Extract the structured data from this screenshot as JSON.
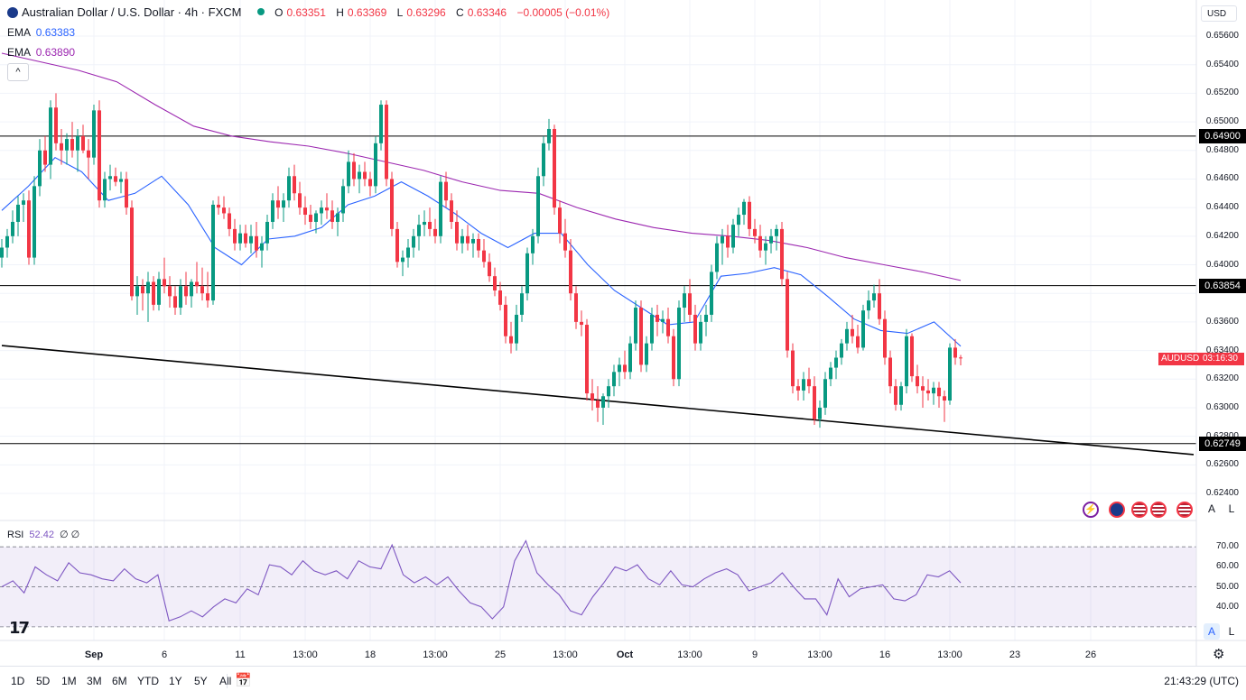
{
  "header": {
    "symbol_title": "Australian Dollar / U.S. Dollar · 4h · FXCM",
    "ohlc": {
      "o_label": "O",
      "o": "0.63351",
      "h_label": "H",
      "h": "0.63369",
      "l_label": "L",
      "l": "0.63296",
      "c_label": "C",
      "c": "0.63346",
      "change": "−0.00005 (−0.01%)"
    },
    "ema1": {
      "label": "EMA",
      "value": "0.63383",
      "color": "#2962ff"
    },
    "ema2": {
      "label": "EMA",
      "value": "0.63890",
      "color": "#9c27b0"
    },
    "collapse_icon": "chevron-up-icon"
  },
  "currency_selector": "USD",
  "price_axis": [
    "0.65600",
    "0.65400",
    "0.65200",
    "0.65000",
    "0.64800",
    "0.64600",
    "0.64400",
    "0.64200",
    "0.64000",
    "0.63600",
    "0.63400",
    "0.63200",
    "0.63000",
    "0.62800",
    "0.62600",
    "0.62400"
  ],
  "price_markers": [
    {
      "label": "0.64900",
      "price": 0.649
    },
    {
      "label": "0.63854",
      "price": 0.63854
    },
    {
      "label": "0.62749",
      "price": 0.62749
    }
  ],
  "current_price": {
    "symbol": "AUDUSD",
    "countdown": "03:16:30",
    "price": 0.63346
  },
  "time_axis": [
    {
      "label": "Sep",
      "bar": 17
    },
    {
      "label": "6",
      "bar": 30
    },
    {
      "label": "11",
      "bar": 44
    },
    {
      "label": "13:00",
      "bar": 56
    },
    {
      "label": "18",
      "bar": 68
    },
    {
      "label": "13:00",
      "bar": 80
    },
    {
      "label": "25",
      "bar": 92
    },
    {
      "label": "13:00",
      "bar": 104
    },
    {
      "label": "Oct",
      "bar": 115
    },
    {
      "label": "13:00",
      "bar": 127
    },
    {
      "label": "9",
      "bar": 139
    },
    {
      "label": "13:00",
      "bar": 151
    },
    {
      "label": "16",
      "bar": 163
    },
    {
      "label": "13:00",
      "bar": 175
    },
    {
      "label": "23",
      "bar": 187
    },
    {
      "label": "26",
      "bar": 201
    }
  ],
  "rsi": {
    "label": "RSI",
    "value": "52.42",
    "extra1": "∅",
    "extra2": "∅",
    "levels": [
      "70.00",
      "60.00",
      "50.00",
      "40.00"
    ]
  },
  "scale_buttons": {
    "auto": "A",
    "log": "L"
  },
  "timeframes": [
    "1D",
    "5D",
    "1M",
    "3M",
    "6M",
    "YTD",
    "1Y",
    "5Y",
    "All"
  ],
  "clock": "21:43:29 (UTC)",
  "logo_text": "17",
  "chart_data": {
    "type": "candlestick",
    "symbol": "AUDUSD",
    "interval": "4h",
    "ylim": [
      0.6236,
      0.6568
    ],
    "horizontal_lines": [
      0.649,
      0.63854,
      0.62749
    ],
    "trendline": [
      {
        "bar": 0,
        "price": 0.63435
      },
      {
        "bar": 220,
        "price": 0.62672
      }
    ],
    "candles": [
      [
        0.6405,
        0.6418,
        0.6398,
        0.6412
      ],
      [
        0.6412,
        0.6425,
        0.6405,
        0.642
      ],
      [
        0.642,
        0.6438,
        0.6415,
        0.643
      ],
      [
        0.643,
        0.6448,
        0.642,
        0.6442
      ],
      [
        0.6442,
        0.645,
        0.643,
        0.6445
      ],
      [
        0.6445,
        0.6452,
        0.64,
        0.6405
      ],
      [
        0.6405,
        0.6462,
        0.64,
        0.6455
      ],
      [
        0.6455,
        0.6488,
        0.6448,
        0.648
      ],
      [
        0.648,
        0.649,
        0.6465,
        0.647
      ],
      [
        0.647,
        0.6515,
        0.646,
        0.651
      ],
      [
        0.651,
        0.652,
        0.648,
        0.6485
      ],
      [
        0.6485,
        0.6495,
        0.647,
        0.648
      ],
      [
        0.648,
        0.6492,
        0.647,
        0.6488
      ],
      [
        0.6488,
        0.65,
        0.6475,
        0.648
      ],
      [
        0.648,
        0.6495,
        0.6465,
        0.649
      ],
      [
        0.649,
        0.6498,
        0.6478,
        0.648
      ],
      [
        0.648,
        0.6488,
        0.646,
        0.6475
      ],
      [
        0.6475,
        0.6512,
        0.647,
        0.6508
      ],
      [
        0.6508,
        0.6515,
        0.644,
        0.6445
      ],
      [
        0.6445,
        0.6465,
        0.644,
        0.646
      ],
      [
        0.646,
        0.647,
        0.6452,
        0.6462
      ],
      [
        0.6462,
        0.6468,
        0.6455,
        0.6458
      ],
      [
        0.6458,
        0.6465,
        0.645,
        0.646
      ],
      [
        0.646,
        0.6465,
        0.6435,
        0.644
      ],
      [
        0.644,
        0.6445,
        0.6375,
        0.6378
      ],
      [
        0.6378,
        0.6392,
        0.6365,
        0.6385
      ],
      [
        0.6385,
        0.639,
        0.6368,
        0.638
      ],
      [
        0.638,
        0.6395,
        0.636,
        0.6388
      ],
      [
        0.6388,
        0.6392,
        0.6368,
        0.6372
      ],
      [
        0.6372,
        0.6395,
        0.6368,
        0.639
      ],
      [
        0.639,
        0.6405,
        0.638,
        0.6385
      ],
      [
        0.6385,
        0.6392,
        0.637,
        0.6378
      ],
      [
        0.6378,
        0.6385,
        0.6365,
        0.637
      ],
      [
        0.637,
        0.639,
        0.6365,
        0.6385
      ],
      [
        0.6385,
        0.6395,
        0.6372,
        0.6378
      ],
      [
        0.6378,
        0.639,
        0.637,
        0.6388
      ],
      [
        0.6388,
        0.6402,
        0.638,
        0.6385
      ],
      [
        0.6385,
        0.6398,
        0.6375,
        0.638
      ],
      [
        0.638,
        0.6395,
        0.637,
        0.6375
      ],
      [
        0.6375,
        0.6445,
        0.6372,
        0.6442
      ],
      [
        0.6442,
        0.6448,
        0.6435,
        0.644
      ],
      [
        0.644,
        0.6448,
        0.6432,
        0.6436
      ],
      [
        0.6436,
        0.644,
        0.642,
        0.6425
      ],
      [
        0.6425,
        0.6432,
        0.641,
        0.6415
      ],
      [
        0.6415,
        0.6428,
        0.641,
        0.6422
      ],
      [
        0.6422,
        0.6428,
        0.6412,
        0.6415
      ],
      [
        0.6415,
        0.6428,
        0.6408,
        0.642
      ],
      [
        0.642,
        0.643,
        0.6405,
        0.641
      ],
      [
        0.641,
        0.642,
        0.6398,
        0.6415
      ],
      [
        0.6415,
        0.6435,
        0.641,
        0.643
      ],
      [
        0.643,
        0.645,
        0.6425,
        0.6445
      ],
      [
        0.6445,
        0.6455,
        0.6432,
        0.644
      ],
      [
        0.644,
        0.645,
        0.643,
        0.6445
      ],
      [
        0.6445,
        0.6468,
        0.644,
        0.6462
      ],
      [
        0.6462,
        0.647,
        0.6445,
        0.645
      ],
      [
        0.645,
        0.6458,
        0.6435,
        0.644
      ],
      [
        0.644,
        0.6448,
        0.6428,
        0.6435
      ],
      [
        0.6435,
        0.6442,
        0.6425,
        0.643
      ],
      [
        0.643,
        0.6438,
        0.6422,
        0.6436
      ],
      [
        0.6436,
        0.6445,
        0.6428,
        0.644
      ],
      [
        0.644,
        0.645,
        0.6432,
        0.6438
      ],
      [
        0.6438,
        0.6445,
        0.6425,
        0.643
      ],
      [
        0.643,
        0.644,
        0.642,
        0.6436
      ],
      [
        0.6436,
        0.646,
        0.643,
        0.6455
      ],
      [
        0.6455,
        0.648,
        0.645,
        0.6472
      ],
      [
        0.6472,
        0.6478,
        0.6455,
        0.646
      ],
      [
        0.646,
        0.647,
        0.645,
        0.6465
      ],
      [
        0.6465,
        0.6472,
        0.6455,
        0.646
      ],
      [
        0.646,
        0.6465,
        0.6448,
        0.6455
      ],
      [
        0.6455,
        0.649,
        0.645,
        0.6485
      ],
      [
        0.6485,
        0.6515,
        0.648,
        0.6512
      ],
      [
        0.6512,
        0.6515,
        0.6455,
        0.646
      ],
      [
        0.646,
        0.6465,
        0.642,
        0.6425
      ],
      [
        0.6425,
        0.643,
        0.6398,
        0.6402
      ],
      [
        0.6402,
        0.641,
        0.6392,
        0.6405
      ],
      [
        0.6405,
        0.6418,
        0.6398,
        0.6412
      ],
      [
        0.6412,
        0.6425,
        0.6405,
        0.642
      ],
      [
        0.642,
        0.6435,
        0.641,
        0.6428
      ],
      [
        0.6428,
        0.6438,
        0.642,
        0.643
      ],
      [
        0.643,
        0.644,
        0.642,
        0.6425
      ],
      [
        0.6425,
        0.6432,
        0.6415,
        0.642
      ],
      [
        0.642,
        0.6462,
        0.6415,
        0.6458
      ],
      [
        0.6458,
        0.6465,
        0.644,
        0.6445
      ],
      [
        0.6445,
        0.645,
        0.6425,
        0.643
      ],
      [
        0.643,
        0.6438,
        0.641,
        0.6415
      ],
      [
        0.6415,
        0.6425,
        0.6408,
        0.642
      ],
      [
        0.642,
        0.6428,
        0.641,
        0.6415
      ],
      [
        0.6415,
        0.6422,
        0.6405,
        0.6418
      ],
      [
        0.6418,
        0.6422,
        0.6405,
        0.641
      ],
      [
        0.641,
        0.6418,
        0.6398,
        0.6402
      ],
      [
        0.6402,
        0.6408,
        0.6388,
        0.6392
      ],
      [
        0.6392,
        0.6398,
        0.6378,
        0.6382
      ],
      [
        0.6382,
        0.6388,
        0.6368,
        0.6372
      ],
      [
        0.6372,
        0.6378,
        0.6345,
        0.635
      ],
      [
        0.635,
        0.636,
        0.6338,
        0.6345
      ],
      [
        0.6345,
        0.6372,
        0.634,
        0.6365
      ],
      [
        0.6365,
        0.6385,
        0.636,
        0.638
      ],
      [
        0.638,
        0.6412,
        0.6375,
        0.6408
      ],
      [
        0.6408,
        0.6425,
        0.64,
        0.642
      ],
      [
        0.642,
        0.6468,
        0.6415,
        0.6462
      ],
      [
        0.6462,
        0.649,
        0.6455,
        0.6485
      ],
      [
        0.6485,
        0.6502,
        0.648,
        0.6495
      ],
      [
        0.6495,
        0.6498,
        0.6435,
        0.644
      ],
      [
        0.644,
        0.6445,
        0.6415,
        0.6422
      ],
      [
        0.6422,
        0.6432,
        0.6405,
        0.641
      ],
      [
        0.641,
        0.6418,
        0.6375,
        0.638
      ],
      [
        0.638,
        0.6385,
        0.6355,
        0.636
      ],
      [
        0.636,
        0.6368,
        0.635,
        0.6358
      ],
      [
        0.6358,
        0.6362,
        0.6305,
        0.631
      ],
      [
        0.631,
        0.632,
        0.6298,
        0.6305
      ],
      [
        0.6305,
        0.6315,
        0.629,
        0.63
      ],
      [
        0.63,
        0.631,
        0.6288,
        0.6308
      ],
      [
        0.6308,
        0.632,
        0.63,
        0.6315
      ],
      [
        0.6315,
        0.633,
        0.6308,
        0.6325
      ],
      [
        0.6325,
        0.6335,
        0.6315,
        0.633
      ],
      [
        0.633,
        0.634,
        0.632,
        0.6325
      ],
      [
        0.6325,
        0.635,
        0.632,
        0.6345
      ],
      [
        0.6345,
        0.6375,
        0.634,
        0.637
      ],
      [
        0.637,
        0.6375,
        0.6325,
        0.633
      ],
      [
        0.633,
        0.635,
        0.6325,
        0.6345
      ],
      [
        0.6345,
        0.637,
        0.634,
        0.6365
      ],
      [
        0.6365,
        0.6372,
        0.635,
        0.636
      ],
      [
        0.636,
        0.6368,
        0.6352,
        0.6362
      ],
      [
        0.6362,
        0.637,
        0.6345,
        0.635
      ],
      [
        0.635,
        0.6355,
        0.6315,
        0.632
      ],
      [
        0.632,
        0.6375,
        0.6315,
        0.637
      ],
      [
        0.637,
        0.6385,
        0.636,
        0.638
      ],
      [
        0.638,
        0.639,
        0.636,
        0.6365
      ],
      [
        0.6365,
        0.6372,
        0.634,
        0.6345
      ],
      [
        0.6345,
        0.6365,
        0.634,
        0.636
      ],
      [
        0.636,
        0.6372,
        0.635,
        0.6365
      ],
      [
        0.6365,
        0.64,
        0.636,
        0.6395
      ],
      [
        0.6395,
        0.642,
        0.639,
        0.6415
      ],
      [
        0.6415,
        0.6425,
        0.64,
        0.642
      ],
      [
        0.642,
        0.6428,
        0.6405,
        0.6412
      ],
      [
        0.6412,
        0.6432,
        0.6408,
        0.6428
      ],
      [
        0.6428,
        0.644,
        0.642,
        0.6435
      ],
      [
        0.6435,
        0.6446,
        0.6428,
        0.6444
      ],
      [
        0.6444,
        0.6448,
        0.642,
        0.6425
      ],
      [
        0.6425,
        0.6432,
        0.6415,
        0.642
      ],
      [
        0.642,
        0.6428,
        0.6405,
        0.641
      ],
      [
        0.641,
        0.642,
        0.64,
        0.6415
      ],
      [
        0.6415,
        0.6425,
        0.6408,
        0.642
      ],
      [
        0.642,
        0.6428,
        0.641,
        0.6425
      ],
      [
        0.6425,
        0.643,
        0.6385,
        0.639
      ],
      [
        0.639,
        0.6395,
        0.6335,
        0.634
      ],
      [
        0.634,
        0.6345,
        0.631,
        0.6315
      ],
      [
        0.6315,
        0.632,
        0.6305,
        0.6312
      ],
      [
        0.6312,
        0.6325,
        0.6305,
        0.632
      ],
      [
        0.632,
        0.6328,
        0.631,
        0.6315
      ],
      [
        0.6315,
        0.6322,
        0.6288,
        0.6292
      ],
      [
        0.6292,
        0.6305,
        0.6286,
        0.63
      ],
      [
        0.63,
        0.6325,
        0.6295,
        0.632
      ],
      [
        0.632,
        0.6332,
        0.6315,
        0.6328
      ],
      [
        0.6328,
        0.634,
        0.632,
        0.6335
      ],
      [
        0.6335,
        0.6348,
        0.633,
        0.6345
      ],
      [
        0.6345,
        0.636,
        0.634,
        0.6355
      ],
      [
        0.6355,
        0.6365,
        0.6345,
        0.635
      ],
      [
        0.635,
        0.6358,
        0.6338,
        0.6342
      ],
      [
        0.6342,
        0.6372,
        0.634,
        0.6368
      ],
      [
        0.6368,
        0.6382,
        0.6362,
        0.6375
      ],
      [
        0.6375,
        0.6386,
        0.637,
        0.638
      ],
      [
        0.638,
        0.639,
        0.6358,
        0.6362
      ],
      [
        0.6362,
        0.6368,
        0.633,
        0.6335
      ],
      [
        0.6335,
        0.634,
        0.631,
        0.6315
      ],
      [
        0.6315,
        0.632,
        0.6298,
        0.6302
      ],
      [
        0.6302,
        0.6318,
        0.6298,
        0.6315
      ],
      [
        0.6315,
        0.6355,
        0.631,
        0.635
      ],
      [
        0.635,
        0.6352,
        0.6318,
        0.6322
      ],
      [
        0.6322,
        0.633,
        0.631,
        0.6315
      ],
      [
        0.6315,
        0.6322,
        0.63,
        0.6312
      ],
      [
        0.6312,
        0.632,
        0.6305,
        0.631
      ],
      [
        0.631,
        0.6318,
        0.6302,
        0.6314
      ],
      [
        0.6314,
        0.6318,
        0.63,
        0.6308
      ],
      [
        0.6308,
        0.6312,
        0.629,
        0.6305
      ],
      [
        0.6305,
        0.6345,
        0.6302,
        0.6342
      ],
      [
        0.6342,
        0.6348,
        0.633,
        0.6335
      ],
      [
        0.63351,
        0.63369,
        0.63296,
        0.63346
      ]
    ],
    "ema_fast": {
      "name": "EMA",
      "last": 0.63383,
      "values": [
        0.6438,
        0.6455,
        0.6475,
        0.6465,
        0.6445,
        0.645,
        0.6462,
        0.6442,
        0.6412,
        0.64,
        0.6418,
        0.642,
        0.6426,
        0.6442,
        0.6448,
        0.6458,
        0.6448,
        0.6436,
        0.6422,
        0.6412,
        0.6422,
        0.6422,
        0.64,
        0.6382,
        0.637,
        0.6358,
        0.636,
        0.6392,
        0.6394,
        0.6398,
        0.6393,
        0.6378,
        0.6362,
        0.6354,
        0.6352,
        0.636,
        0.6343
      ]
    },
    "ema_slow": {
      "name": "EMA",
      "last": 0.6389,
      "values": [
        0.6548,
        0.6542,
        0.6536,
        0.6528,
        0.6512,
        0.6497,
        0.649,
        0.6486,
        0.6483,
        0.6478,
        0.6472,
        0.6466,
        0.6458,
        0.6452,
        0.645,
        0.644,
        0.6432,
        0.6426,
        0.6422,
        0.642,
        0.6417,
        0.6412,
        0.6405,
        0.64,
        0.6395,
        0.6389
      ]
    },
    "rsi_series": [
      50,
      53,
      47,
      60,
      56,
      53,
      62,
      57,
      56,
      54,
      53,
      59,
      54,
      52,
      56,
      33,
      35,
      38,
      35,
      40,
      44,
      42,
      49,
      46,
      61,
      60,
      56,
      63,
      58,
      56,
      58,
      54,
      63,
      60,
      59,
      71,
      56,
      52,
      55,
      51,
      55,
      48,
      42,
      40,
      34,
      40,
      63,
      73,
      57,
      51,
      46,
      38,
      36,
      45,
      52,
      60,
      58,
      61,
      54,
      51,
      58,
      51,
      50,
      54,
      57,
      59,
      56,
      48,
      50,
      52,
      57,
      50,
      44,
      44,
      36,
      54,
      45,
      49,
      50,
      51,
      44,
      43,
      46,
      56,
      55,
      58,
      52
    ],
    "rsi_levels": [
      70,
      50,
      30
    ]
  }
}
